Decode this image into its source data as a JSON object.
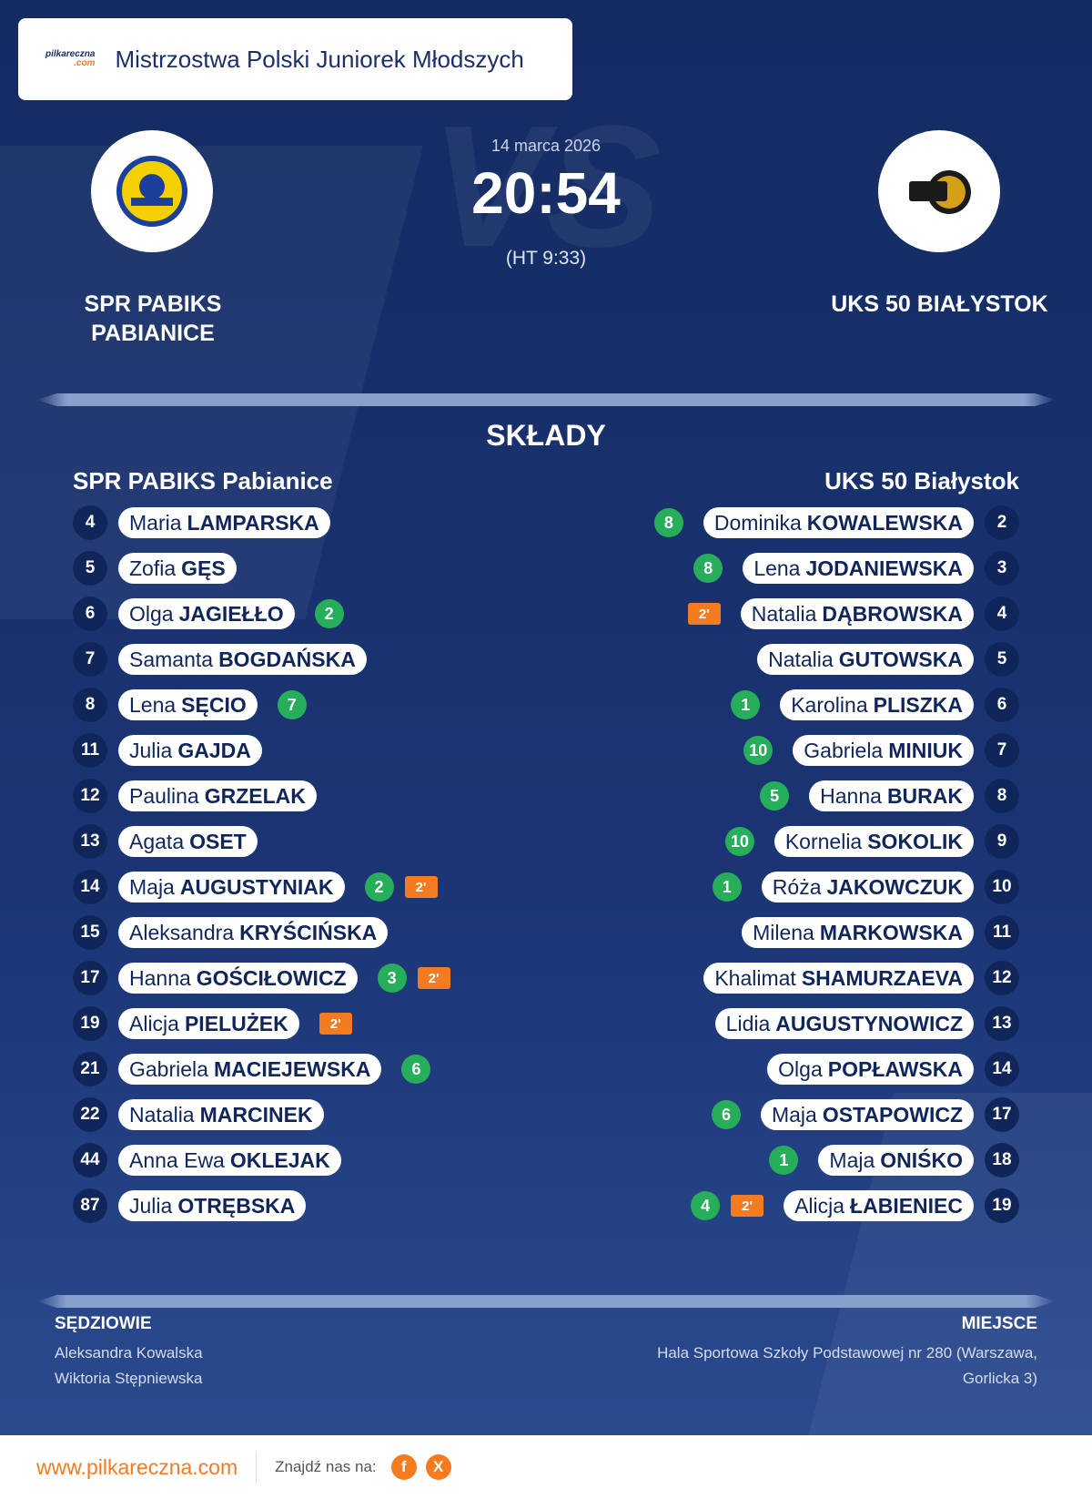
{
  "header": {
    "logo_text": "pilkareczna",
    "logo_suffix": ".com",
    "title": "Mistrzostwa Polski Juniorek Młodszych"
  },
  "match": {
    "watermark": "VS",
    "date": "14 marca 2026",
    "score": "20:54",
    "halftime": "(HT 9:33)",
    "home": "SPR PABIKS PABIANICE",
    "away": "UKS 50 BIAŁYSTOK"
  },
  "lineups": {
    "title": "SKŁADY",
    "home": {
      "team": "SPR PABIKS Pabianice",
      "players": [
        {
          "number": 4,
          "first": "Maria",
          "last": "LAMPARSKA"
        },
        {
          "number": 5,
          "first": "Zofia",
          "last": "GĘS"
        },
        {
          "number": 6,
          "first": "Olga",
          "last": "JAGIEŁŁO",
          "goals": 2
        },
        {
          "number": 7,
          "first": "Samanta",
          "last": "BOGDAŃSKA"
        },
        {
          "number": 8,
          "first": "Lena",
          "last": "SĘCIO",
          "goals": 7
        },
        {
          "number": 11,
          "first": "Julia",
          "last": "GAJDA"
        },
        {
          "number": 12,
          "first": "Paulina",
          "last": "GRZELAK"
        },
        {
          "number": 13,
          "first": "Agata",
          "last": "OSET"
        },
        {
          "number": 14,
          "first": "Maja",
          "last": "AUGUSTYNIAK",
          "goals": 2,
          "penalty": "2'"
        },
        {
          "number": 15,
          "first": "Aleksandra",
          "last": "KRYŚCIŃSKA"
        },
        {
          "number": 17,
          "first": "Hanna",
          "last": "GOŚCIŁOWICZ",
          "goals": 3,
          "penalty": "2'"
        },
        {
          "number": 19,
          "first": "Alicja",
          "last": "PIELUŻEK",
          "penalty": "2'"
        },
        {
          "number": 21,
          "first": "Gabriela",
          "last": "MACIEJEWSKA",
          "goals": 6
        },
        {
          "number": 22,
          "first": "Natalia",
          "last": "MARCINEK"
        },
        {
          "number": 44,
          "first": "Anna Ewa",
          "last": "OKLEJAK"
        },
        {
          "number": 87,
          "first": "Julia",
          "last": "OTRĘBSKA"
        }
      ]
    },
    "away": {
      "team": "UKS 50 Białystok",
      "players": [
        {
          "number": 2,
          "first": "Dominika",
          "last": "KOWALEWSKA",
          "goals": 8
        },
        {
          "number": 3,
          "first": "Lena",
          "last": "JODANIEWSKA",
          "goals": 8
        },
        {
          "number": 4,
          "first": "Natalia",
          "last": "DĄBROWSKA",
          "penalty": "2'"
        },
        {
          "number": 5,
          "first": "Natalia",
          "last": "GUTOWSKA"
        },
        {
          "number": 6,
          "first": "Karolina",
          "last": "PLISZKA",
          "goals": 1
        },
        {
          "number": 7,
          "first": "Gabriela",
          "last": "MINIUK",
          "goals": 10
        },
        {
          "number": 8,
          "first": "Hanna",
          "last": "BURAK",
          "goals": 5
        },
        {
          "number": 9,
          "first": "Kornelia",
          "last": "SOKOLIK",
          "goals": 10
        },
        {
          "number": 10,
          "first": "Róża",
          "last": "JAKOWCZUK",
          "goals": 1
        },
        {
          "number": 11,
          "first": "Milena",
          "last": "MARKOWSKA"
        },
        {
          "number": 12,
          "first": "Khalimat",
          "last": "SHAMURZAEVA"
        },
        {
          "number": 13,
          "first": "Lidia",
          "last": "AUGUSTYNOWICZ"
        },
        {
          "number": 14,
          "first": "Olga",
          "last": "POPŁAWSKA"
        },
        {
          "number": 17,
          "first": "Maja",
          "last": "OSTAPOWICZ",
          "goals": 6
        },
        {
          "number": 18,
          "first": "Maja",
          "last": "ONIŚKO",
          "goals": 1
        },
        {
          "number": 19,
          "first": "Alicja",
          "last": "ŁABIENIEC",
          "goals": 4,
          "penalty": "2'"
        }
      ]
    }
  },
  "info": {
    "officials_title": "SĘDZIOWIE",
    "officials": [
      "Aleksandra Kowalska",
      "Wiktoria Stępniewska"
    ],
    "venue_title": "MIEJSCE",
    "venue": "Hala Sportowa Szkoły Podstawowej nr 280 (Warszawa, Gorlicka 3)"
  },
  "footer": {
    "website": "www.pilkareczna.com",
    "follow": "Znajdź nas na:",
    "facebook": "f",
    "x": "X"
  }
}
